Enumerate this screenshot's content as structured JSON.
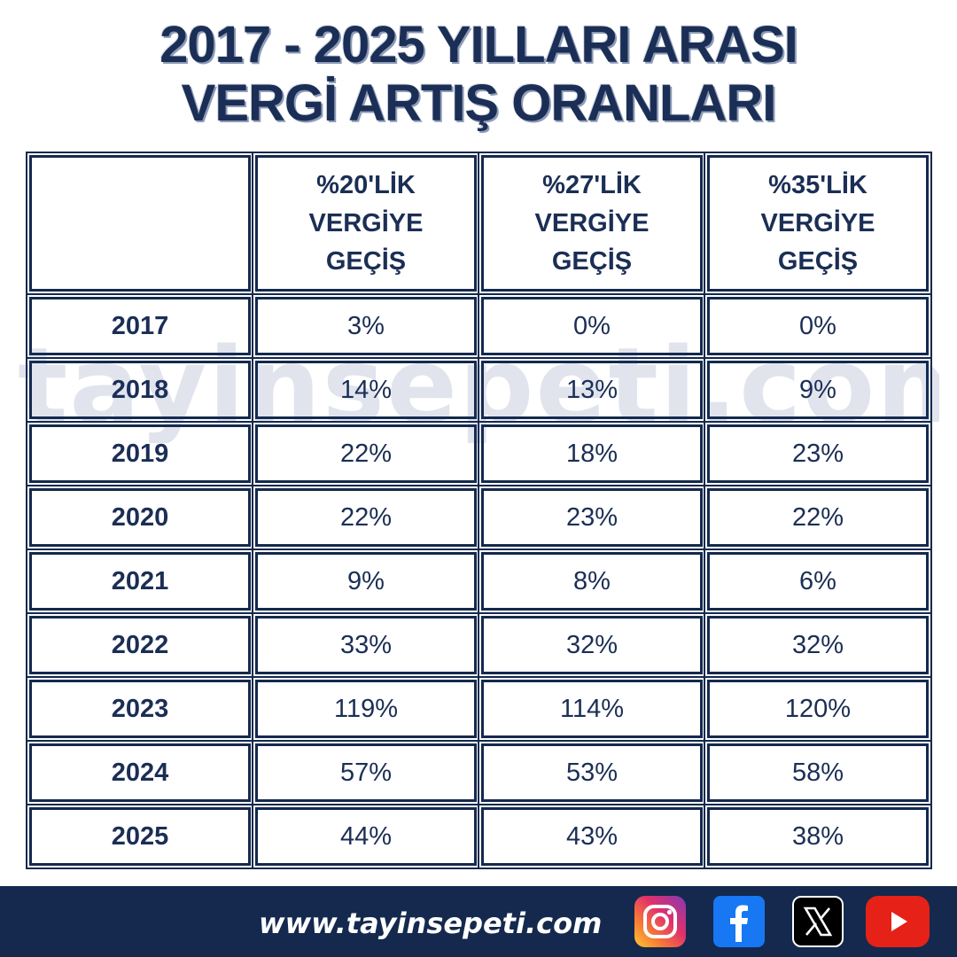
{
  "title": {
    "line1": "2017 - 2025 YILLARI ARASI",
    "line2": "VERGİ ARTIŞ ORANLARI"
  },
  "table": {
    "headers": [
      {
        "line1": "%20'LİK",
        "line2": "VERGİYE",
        "line3": "GEÇİŞ"
      },
      {
        "line1": "%27'LİK",
        "line2": "VERGİYE",
        "line3": "GEÇİŞ"
      },
      {
        "line1": "%35'LİK",
        "line2": "VERGİYE",
        "line3": "GEÇİŞ"
      }
    ],
    "rows": [
      {
        "year": "2017",
        "values": [
          "3%",
          "0%",
          "0%"
        ]
      },
      {
        "year": "2018",
        "values": [
          "14%",
          "13%",
          "9%"
        ]
      },
      {
        "year": "2019",
        "values": [
          "22%",
          "18%",
          "23%"
        ]
      },
      {
        "year": "2020",
        "values": [
          "22%",
          "23%",
          "22%"
        ]
      },
      {
        "year": "2021",
        "values": [
          "9%",
          "8%",
          "6%"
        ]
      },
      {
        "year": "2022",
        "values": [
          "33%",
          "32%",
          "32%"
        ]
      },
      {
        "year": "2023",
        "values": [
          "119%",
          "114%",
          "120%"
        ]
      },
      {
        "year": "2024",
        "values": [
          "57%",
          "53%",
          "58%"
        ]
      },
      {
        "year": "2025",
        "values": [
          "44%",
          "43%",
          "38%"
        ]
      }
    ]
  },
  "watermark": "tayinsepeti.com",
  "footer": {
    "url": "www.tayinsepeti.com",
    "social_icons": [
      "instagram-icon",
      "facebook-icon",
      "x-icon",
      "youtube-icon"
    ],
    "colors": {
      "band": "#14294d",
      "text": "#ffffff"
    }
  }
}
